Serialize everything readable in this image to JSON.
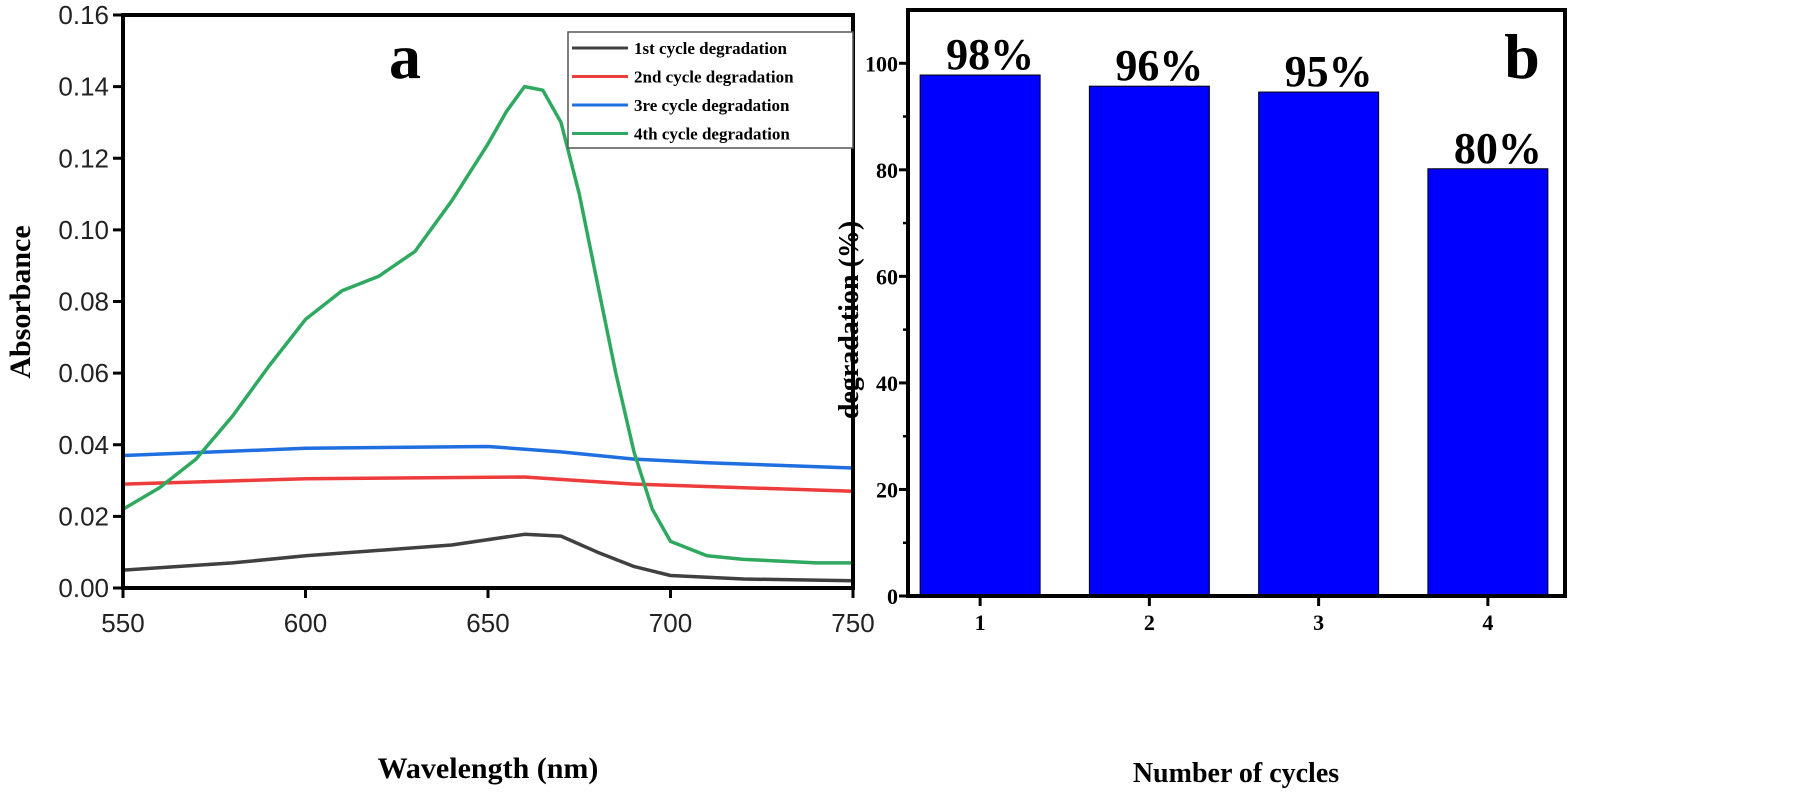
{
  "chart_data": [
    {
      "type": "line",
      "panel_label": "a",
      "xlabel": "Wavelength (nm)",
      "ylabel": "Absorbance",
      "xlim": [
        550,
        750
      ],
      "ylim": [
        0,
        0.16
      ],
      "xticks": [
        "550",
        "600",
        "650",
        "700",
        "750"
      ],
      "yticks": [
        "0.00",
        "0.02",
        "0.04",
        "0.06",
        "0.08",
        "0.10",
        "0.12",
        "0.14",
        "0.16"
      ],
      "legend_position": "top-right",
      "series": [
        {
          "name": "1st cycle degradation",
          "color": "#404040",
          "x": [
            550,
            580,
            600,
            620,
            640,
            660,
            670,
            680,
            690,
            700,
            720,
            750
          ],
          "y": [
            0.005,
            0.007,
            0.009,
            0.0105,
            0.012,
            0.015,
            0.0145,
            0.01,
            0.006,
            0.0035,
            0.0025,
            0.002
          ]
        },
        {
          "name": "2nd cycle degradation",
          "color": "#ee3b3b",
          "x": [
            550,
            600,
            660,
            675,
            690,
            720,
            750
          ],
          "y": [
            0.029,
            0.0305,
            0.031,
            0.03,
            0.029,
            0.028,
            0.027
          ]
        },
        {
          "name": "3re cycle degradation",
          "color": "#1f6fe0",
          "x": [
            550,
            600,
            650,
            670,
            690,
            710,
            750
          ],
          "y": [
            0.037,
            0.039,
            0.0395,
            0.038,
            0.036,
            0.035,
            0.0335
          ]
        },
        {
          "name": "4th cycle degradation",
          "color": "#2fa860",
          "x": [
            550,
            560,
            570,
            580,
            590,
            600,
            610,
            620,
            630,
            640,
            650,
            655,
            660,
            665,
            670,
            675,
            680,
            685,
            690,
            695,
            700,
            710,
            720,
            730,
            740,
            750
          ],
          "y": [
            0.022,
            0.028,
            0.036,
            0.048,
            0.062,
            0.075,
            0.083,
            0.087,
            0.094,
            0.108,
            0.124,
            0.133,
            0.14,
            0.139,
            0.13,
            0.11,
            0.085,
            0.06,
            0.038,
            0.022,
            0.013,
            0.009,
            0.008,
            0.0075,
            0.007,
            0.007
          ]
        }
      ]
    },
    {
      "type": "bar",
      "panel_label": "b",
      "xlabel": "Number of cycles",
      "ylabel": "degradation (%)",
      "categories": [
        "1",
        "2",
        "3",
        "4"
      ],
      "values": [
        97.8,
        95.7,
        94.6,
        80.2
      ],
      "data_labels": [
        "98%",
        "96%",
        "95%",
        "80%"
      ],
      "ylim": [
        0,
        110
      ],
      "yticks": [
        "0",
        "20",
        "40",
        "60",
        "80",
        "100"
      ],
      "bar_color": "#0000ff"
    }
  ]
}
